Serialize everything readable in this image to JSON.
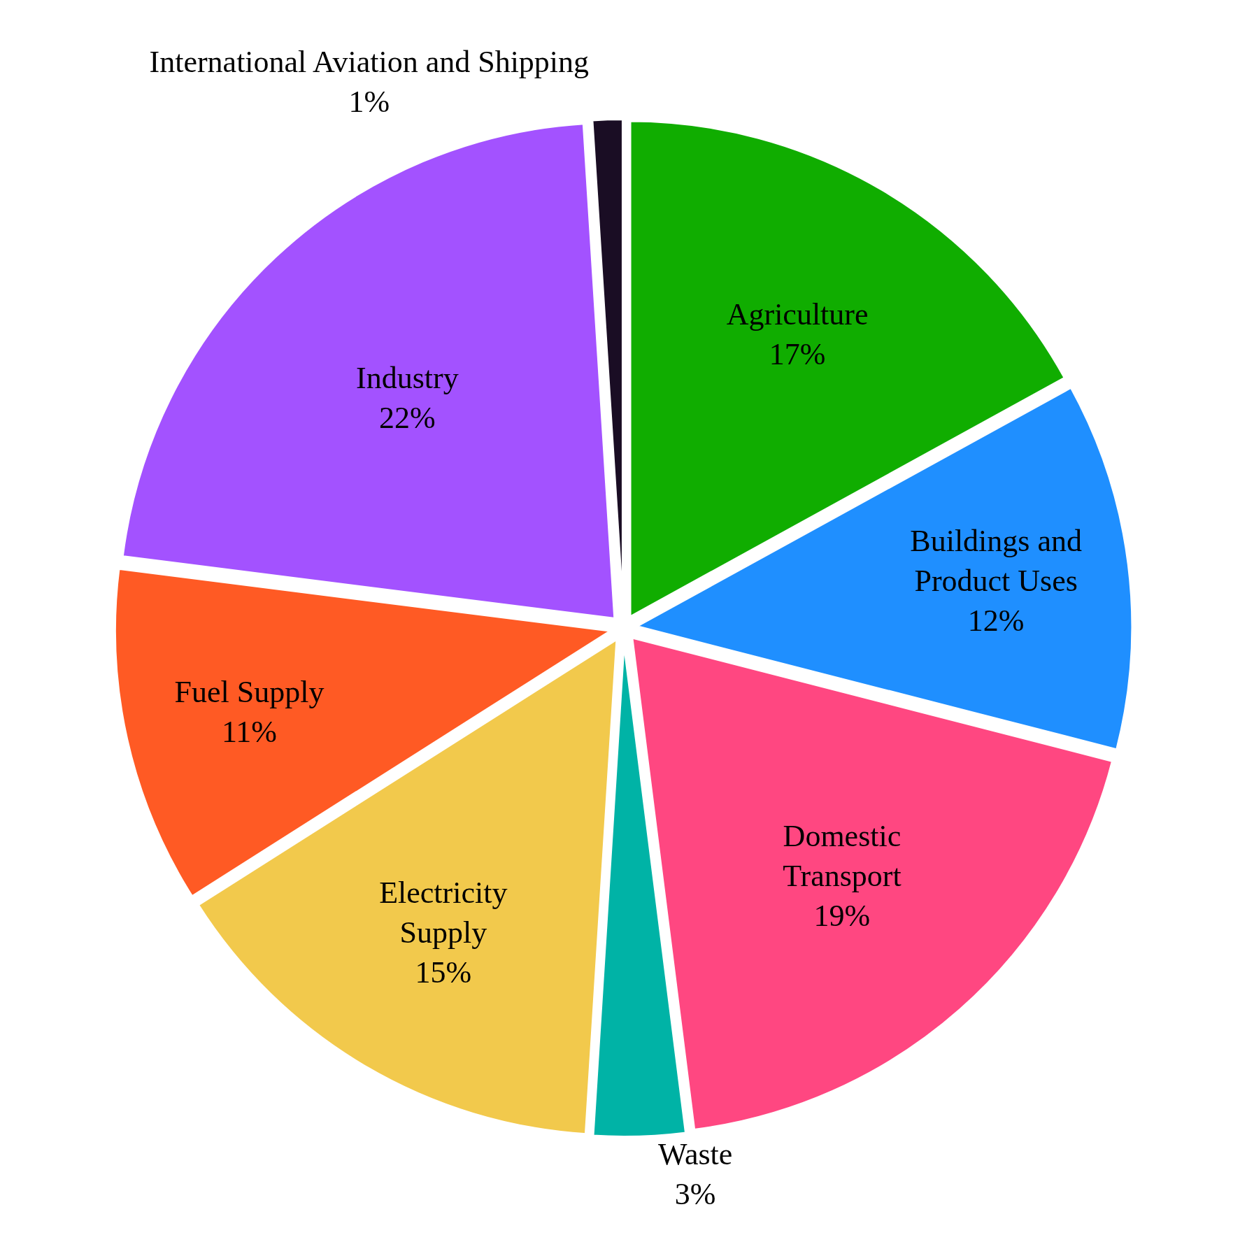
{
  "chart_data": {
    "type": "pie",
    "categories": [
      "Agriculture",
      "Buildings and Product Uses",
      "Domestic Transport",
      "Waste",
      "Electricity Supply",
      "Fuel Supply",
      "Industry",
      "International Aviation and Shipping"
    ],
    "values": [
      17,
      12,
      19,
      3,
      15,
      11,
      22,
      1
    ],
    "value_labels": [
      "17%",
      "12%",
      "19%",
      "3%",
      "15%",
      "11%",
      "22%",
      "1%"
    ],
    "colors": [
      "#10ad00",
      "#1f8fff",
      "#ff4781",
      "#00b3a6",
      "#f2c94c",
      "#ff5a24",
      "#a352ff",
      "#1a0d24"
    ],
    "legend": false
  }
}
